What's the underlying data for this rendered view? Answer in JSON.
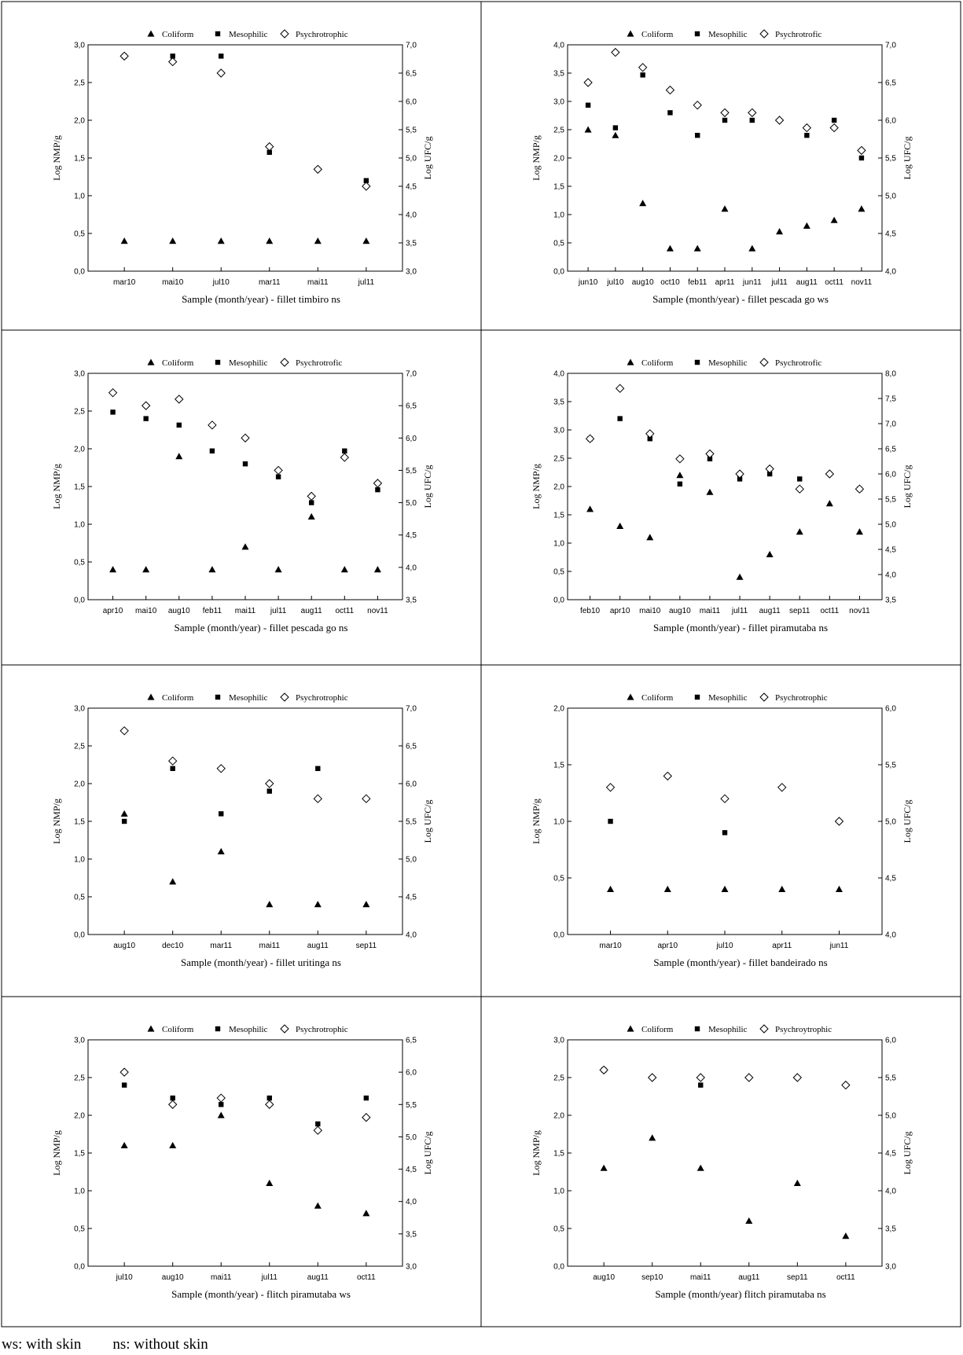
{
  "footnote": {
    "ws": "ws: with skin",
    "ns": "ns: without skin"
  },
  "chart_data": [
    {
      "type": "scatter",
      "title": "",
      "xlabel": "Sample (month/year) - fillet timbiro ns",
      "ylabel": "Log NMP/g",
      "y2label": "Log UFC/g",
      "categories": [
        "mar10",
        "mai10",
        "jul10",
        "mar11",
        "mai11",
        "jul11"
      ],
      "ylim": [
        0,
        3
      ],
      "yticks": [
        0,
        0.5,
        1,
        1.5,
        2,
        2.5,
        3
      ],
      "y2lim": [
        3,
        7
      ],
      "y2ticks": [
        3,
        3.5,
        4,
        4.5,
        5,
        5.5,
        6,
        6.5,
        7
      ],
      "series": [
        {
          "name": "Coliform",
          "marker": "triangle",
          "axis": "left",
          "values": [
            0.4,
            0.4,
            0.4,
            0.4,
            0.4,
            0.4
          ]
        },
        {
          "name": "Mesophilic",
          "marker": "square",
          "axis": "right",
          "values": [
            6.8,
            6.8,
            6.8,
            5.1,
            null,
            4.6
          ]
        },
        {
          "name": "Psychrotrophic",
          "marker": "diamond",
          "axis": "right",
          "values": [
            6.8,
            6.7,
            6.5,
            5.2,
            4.8,
            4.5
          ]
        }
      ]
    },
    {
      "type": "scatter",
      "title": "",
      "xlabel": "Sample (month/year) - fillet pescada go ws",
      "ylabel": "Log NMP/g",
      "y2label": "Log UFC/g",
      "categories": [
        "jun10",
        "jul10",
        "aug10",
        "oct10",
        "feb11",
        "apr11",
        "jun11",
        "jul11",
        "aug11",
        "oct11",
        "nov11"
      ],
      "ylim": [
        0,
        4
      ],
      "yticks": [
        0,
        0.5,
        1,
        1.5,
        2,
        2.5,
        3,
        3.5,
        4
      ],
      "y2lim": [
        4,
        7
      ],
      "y2ticks": [
        4,
        4.5,
        5,
        5.5,
        6,
        6.5,
        7
      ],
      "series": [
        {
          "name": "Coliform",
          "marker": "triangle",
          "axis": "left",
          "values": [
            2.5,
            2.4,
            1.2,
            0.4,
            0.4,
            1.1,
            0.4,
            0.7,
            0.8,
            0.9,
            1.1
          ]
        },
        {
          "name": "Mesophilic",
          "marker": "square",
          "axis": "right",
          "values": [
            6.2,
            5.9,
            6.6,
            6.1,
            5.8,
            6.0,
            6.0,
            null,
            5.8,
            6.0,
            5.5
          ]
        },
        {
          "name": "Psychrotrofic",
          "marker": "diamond",
          "axis": "right",
          "values": [
            6.5,
            6.9,
            6.7,
            6.4,
            6.2,
            6.1,
            6.1,
            6.0,
            5.9,
            5.9,
            5.6
          ]
        }
      ]
    },
    {
      "type": "scatter",
      "title": "",
      "xlabel": "Sample (month/year) - fillet pescada go ns",
      "ylabel": "Log NMP/g",
      "y2label": "Log UFC/g",
      "categories": [
        "apr10",
        "mai10",
        "aug10",
        "feb11",
        "mai11",
        "jul11",
        "aug11",
        "oct11",
        "nov11"
      ],
      "ylim": [
        0,
        3
      ],
      "yticks": [
        0,
        0.5,
        1,
        1.5,
        2,
        2.5,
        3
      ],
      "y2lim": [
        3.5,
        7
      ],
      "y2ticks": [
        3.5,
        4,
        4.5,
        5,
        5.5,
        6,
        6.5,
        7
      ],
      "series": [
        {
          "name": "Coliform",
          "marker": "triangle",
          "axis": "left",
          "values": [
            0.4,
            0.4,
            1.9,
            0.4,
            0.7,
            0.4,
            1.1,
            0.4,
            0.4
          ]
        },
        {
          "name": "Mesophilic",
          "marker": "square",
          "axis": "right",
          "values": [
            6.4,
            6.3,
            6.2,
            5.8,
            5.6,
            5.4,
            5.0,
            5.8,
            5.2
          ]
        },
        {
          "name": "Psychrotrofic",
          "marker": "diamond",
          "axis": "right",
          "values": [
            6.7,
            6.5,
            6.6,
            6.2,
            6.0,
            5.5,
            5.1,
            5.7,
            5.3
          ]
        }
      ]
    },
    {
      "type": "scatter",
      "title": "",
      "xlabel": "Sample (month/year) - fillet piramutaba ns",
      "ylabel": "Log NMP/g",
      "y2label": "Log UFC/g",
      "categories": [
        "feb10",
        "apr10",
        "mai10",
        "aug10",
        "mai11",
        "jul11",
        "aug11",
        "sep11",
        "oct11",
        "nov11"
      ],
      "ylim": [
        0,
        4
      ],
      "yticks": [
        0,
        0.5,
        1,
        1.5,
        2,
        2.5,
        3,
        3.5,
        4
      ],
      "y2lim": [
        3.5,
        8
      ],
      "y2ticks": [
        3.5,
        4,
        4.5,
        5,
        5.5,
        6,
        6.5,
        7,
        7.5,
        8
      ],
      "series": [
        {
          "name": "Coliform",
          "marker": "triangle",
          "axis": "left",
          "values": [
            1.6,
            1.3,
            1.1,
            2.2,
            1.9,
            0.4,
            0.8,
            1.2,
            1.7,
            1.2
          ]
        },
        {
          "name": "Mesophilic",
          "marker": "square",
          "axis": "right",
          "values": [
            6.7,
            7.1,
            6.7,
            5.8,
            6.3,
            5.9,
            6.0,
            5.9,
            null,
            5.7
          ]
        },
        {
          "name": "Psychrotrofic",
          "marker": "diamond",
          "axis": "right",
          "values": [
            6.7,
            7.7,
            6.8,
            6.3,
            6.4,
            6.0,
            6.1,
            5.7,
            6.0,
            5.7
          ]
        }
      ]
    },
    {
      "type": "scatter",
      "title": "",
      "xlabel": "Sample (month/year) - fillet uritinga ns",
      "ylabel": "Log NMP/g",
      "y2label": "Log UFC/g",
      "categories": [
        "aug10",
        "dec10",
        "mar11",
        "mai11",
        "aug11",
        "sep11"
      ],
      "ylim": [
        0,
        3
      ],
      "yticks": [
        0,
        0.5,
        1,
        1.5,
        2,
        2.5,
        3
      ],
      "y2lim": [
        4,
        7
      ],
      "y2ticks": [
        4,
        4.5,
        5,
        5.5,
        6,
        6.5,
        7
      ],
      "series": [
        {
          "name": "Coliform",
          "marker": "triangle",
          "axis": "left",
          "values": [
            1.6,
            0.7,
            1.1,
            0.4,
            0.4,
            0.4
          ]
        },
        {
          "name": "Mesophilic",
          "marker": "square",
          "axis": "right",
          "values": [
            5.5,
            6.2,
            5.6,
            5.9,
            6.2,
            null
          ]
        },
        {
          "name": "Psychrotrophic",
          "marker": "diamond",
          "axis": "right",
          "values": [
            6.7,
            6.3,
            6.2,
            6.0,
            5.8,
            5.8
          ]
        }
      ]
    },
    {
      "type": "scatter",
      "title": "",
      "xlabel": "Sample (month/year) - fillet bandeirado ns",
      "ylabel": "Log NMP/g",
      "y2label": "Log UFC/g",
      "categories": [
        "mar10",
        "apr10",
        "jul10",
        "apr11",
        "jun11"
      ],
      "ylim": [
        0,
        2
      ],
      "yticks": [
        0,
        0.5,
        1,
        1.5,
        2
      ],
      "y2lim": [
        4,
        6
      ],
      "y2ticks": [
        4,
        4.5,
        5,
        5.5,
        6
      ],
      "series": [
        {
          "name": "Coliform",
          "marker": "triangle",
          "axis": "left",
          "values": [
            0.4,
            0.4,
            0.4,
            0.4,
            0.4
          ]
        },
        {
          "name": "Mesophilic",
          "marker": "square",
          "axis": "right",
          "values": [
            5.0,
            null,
            4.9,
            null,
            null
          ]
        },
        {
          "name": "Psychrotrophic",
          "marker": "diamond",
          "axis": "right",
          "values": [
            5.3,
            5.4,
            5.2,
            5.3,
            5.0
          ]
        }
      ]
    },
    {
      "type": "scatter",
      "title": "",
      "xlabel": "Sample (month/year) - flitch piramutaba ws",
      "ylabel": "Log NMP/g",
      "y2label": "Log UFC/g",
      "categories": [
        "jul10",
        "aug10",
        "mai11",
        "jul11",
        "aug11",
        "oct11"
      ],
      "ylim": [
        0,
        3
      ],
      "yticks": [
        0,
        0.5,
        1,
        1.5,
        2,
        2.5,
        3
      ],
      "y2lim": [
        3,
        6.5
      ],
      "y2ticks": [
        3,
        3.5,
        4,
        4.5,
        5,
        5.5,
        6,
        6.5
      ],
      "series": [
        {
          "name": "Coliform",
          "marker": "triangle",
          "axis": "left",
          "values": [
            1.6,
            1.6,
            2.0,
            1.1,
            0.8,
            0.7
          ]
        },
        {
          "name": "Mesophilic",
          "marker": "square",
          "axis": "right",
          "values": [
            5.8,
            5.6,
            5.5,
            5.6,
            5.2,
            5.6
          ]
        },
        {
          "name": "Psychrotrophic",
          "marker": "diamond",
          "axis": "right",
          "values": [
            6.0,
            5.5,
            5.6,
            5.5,
            5.1,
            5.3
          ]
        }
      ]
    },
    {
      "type": "scatter",
      "title": "",
      "xlabel": "Sample (month/year) flitch piramutaba ns",
      "ylabel": "Log NMP/g",
      "y2label": "Log UFC/g",
      "categories": [
        "aug10",
        "sep10",
        "mai11",
        "aug11",
        "sep11",
        "oct11"
      ],
      "ylim": [
        0,
        3
      ],
      "yticks": [
        0,
        0.5,
        1,
        1.5,
        2,
        2.5,
        3
      ],
      "y2lim": [
        3,
        6
      ],
      "y2ticks": [
        3,
        3.5,
        4,
        4.5,
        5,
        5.5,
        6
      ],
      "series": [
        {
          "name": "Coliform",
          "marker": "triangle",
          "axis": "left",
          "values": [
            1.3,
            1.7,
            1.3,
            0.6,
            1.1,
            0.4
          ]
        },
        {
          "name": "Mesophilic",
          "marker": "square",
          "axis": "right",
          "values": [
            5.6,
            null,
            5.4,
            null,
            null,
            null
          ]
        },
        {
          "name": "Psychroytrophic",
          "marker": "diamond",
          "axis": "right",
          "values": [
            5.6,
            5.5,
            5.5,
            5.5,
            5.5,
            5.4
          ]
        }
      ]
    }
  ]
}
